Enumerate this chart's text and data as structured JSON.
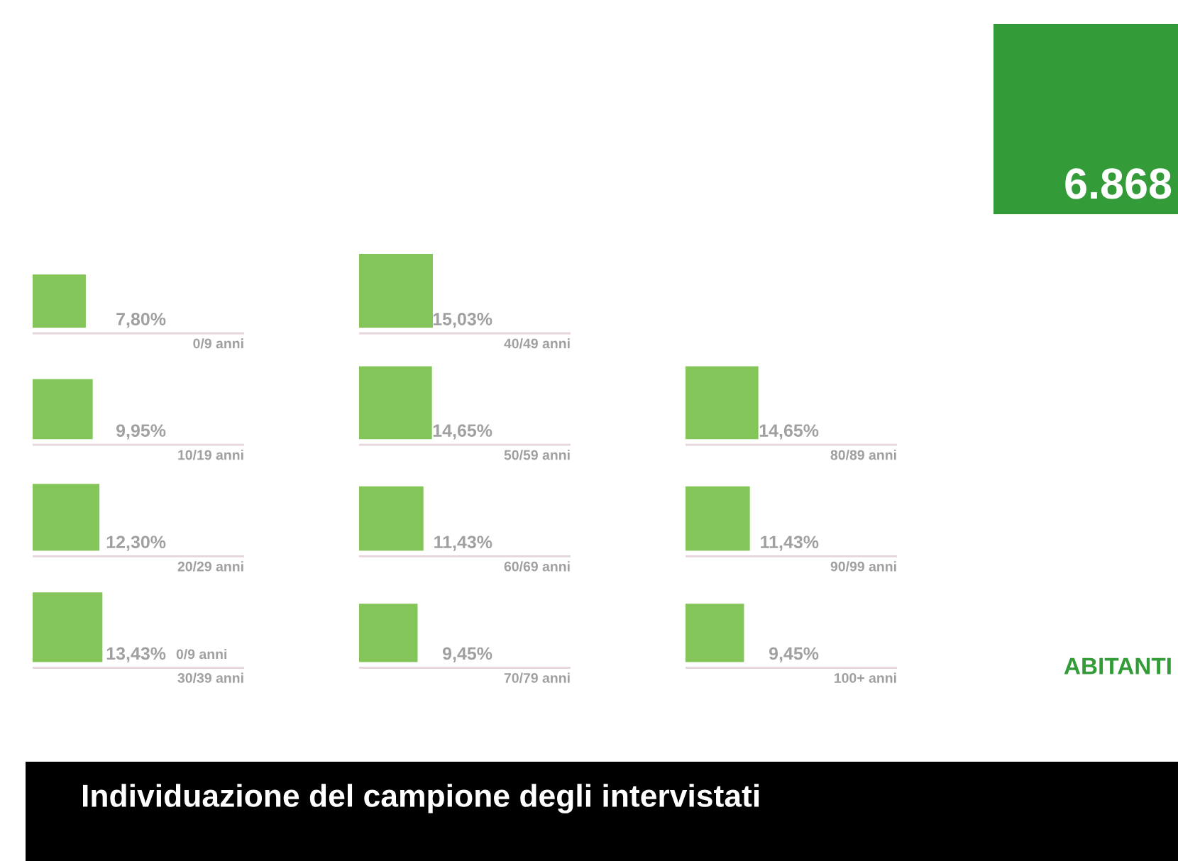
{
  "chart_data": {
    "type": "other",
    "title": "Individuazione del campione degli intervistati",
    "categories": [
      "0/9 anni",
      "10/19 anni",
      "20/29 anni",
      "30/39 anni",
      "40/49 anni",
      "50/59 anni",
      "60/69 anni",
      "70/79 anni",
      "80/89 anni",
      "90/99 anni",
      "100+ anni"
    ],
    "values": [
      7.8,
      9.95,
      12.3,
      13.43,
      15.03,
      14.65,
      11.43,
      9.45,
      14.65,
      11.43,
      9.45
    ],
    "value_labels": [
      "7,80%",
      "9,95%",
      "12,30%",
      "13,43%",
      "15,03%",
      "14,65%",
      "11,43%",
      "9,45%",
      "14,65%",
      "11,43%",
      "9,45%"
    ],
    "color": "#84c55a",
    "annotations": [
      "0/9 anni",
      "6.868",
      "ABITANTI"
    ]
  }
}
